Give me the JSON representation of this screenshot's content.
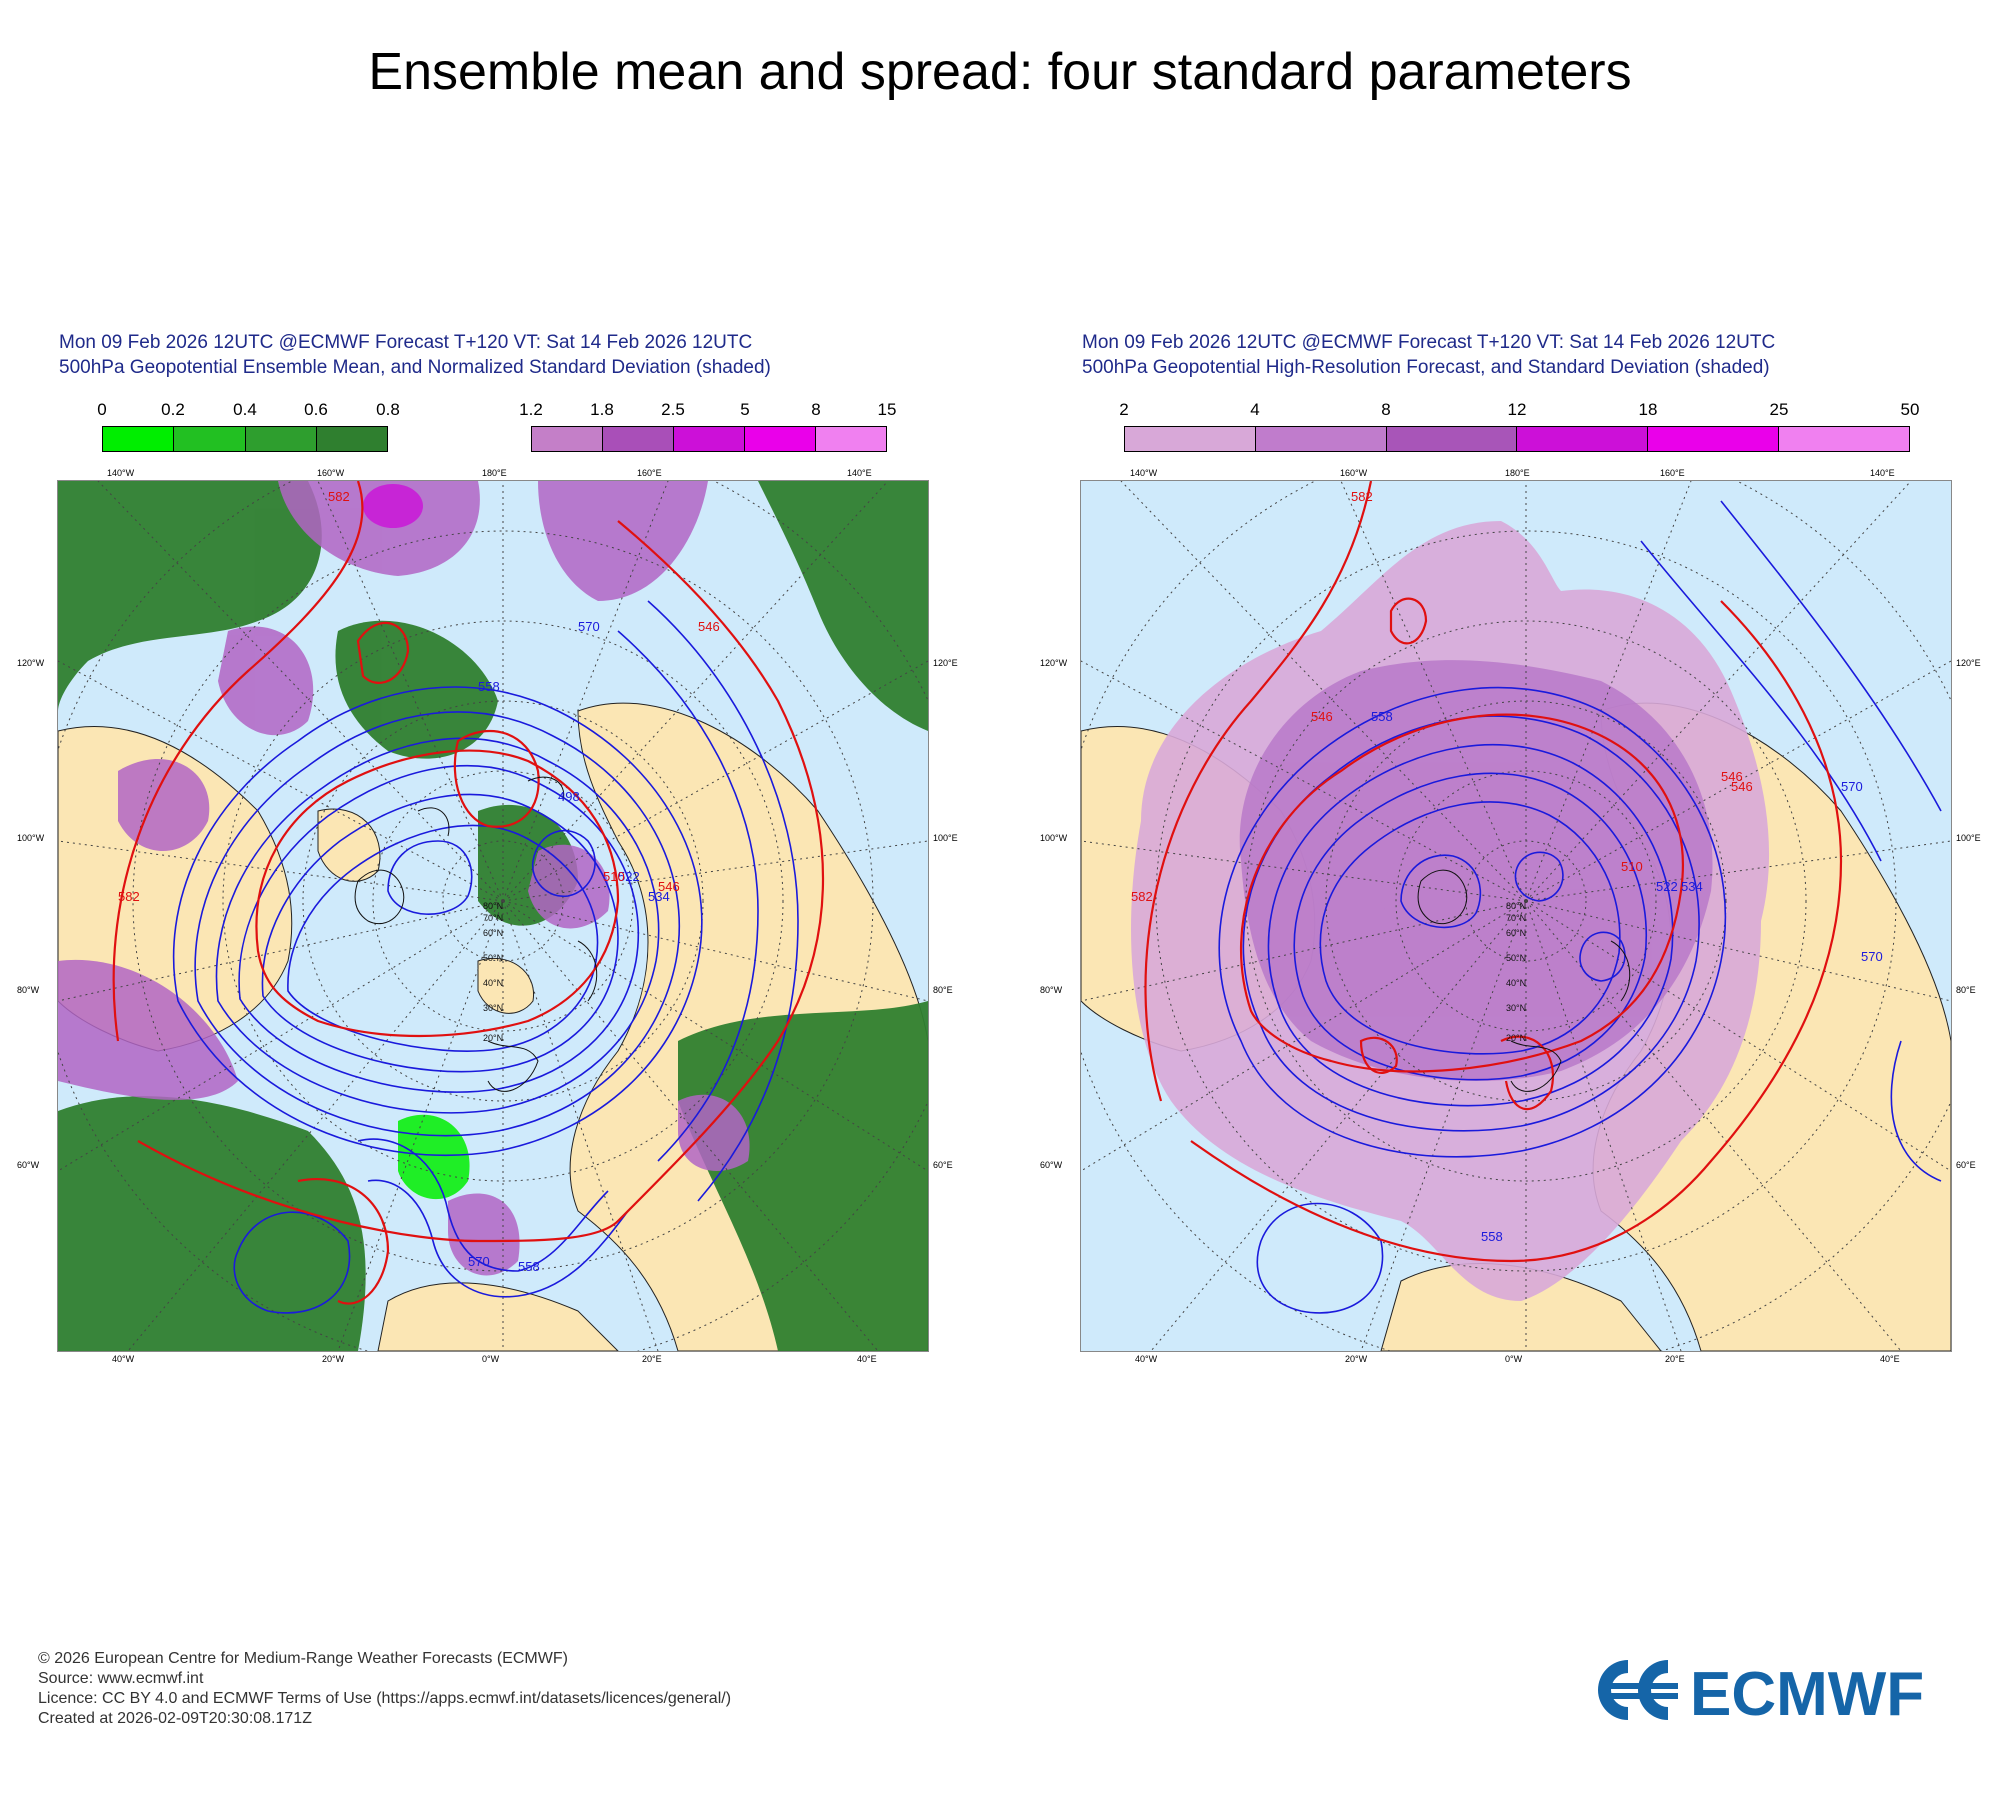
{
  "title": "Ensemble mean and spread: four standard parameters",
  "panels": [
    {
      "header_line1": "Mon 09 Feb 2026 12UTC @ECMWF Forecast T+120 VT: Sat 14 Feb 2026 12UTC",
      "header_line2": "500hPa Geopotential Ensemble Mean, and Normalized Standard Deviation (shaded)",
      "legend_green": {
        "ticks": [
          "0",
          "0.2",
          "0.4",
          "0.6",
          "0.8"
        ],
        "colors": [
          "#00ee00",
          "#22c022",
          "#2e9e2e",
          "#2f7f2f"
        ]
      },
      "legend_purple": {
        "ticks": [
          "1.2",
          "1.8",
          "2.5",
          "5",
          "8",
          "15"
        ],
        "colors": [
          "#c47fc8",
          "#a94fb8",
          "#cc10d8",
          "#ea00ea",
          "#f080f0"
        ]
      }
    },
    {
      "header_line1": "Mon 09 Feb 2026 12UTC @ECMWF Forecast T+120 VT: Sat 14 Feb 2026 12UTC",
      "header_line2": "500hPa Geopotential High-Resolution Forecast, and Standard Deviation (shaded)",
      "legend": {
        "ticks": [
          "2",
          "4",
          "8",
          "12",
          "18",
          "25",
          "50"
        ],
        "colors": [
          "#d8a8d8",
          "#c07ccc",
          "#a855b8",
          "#cc10d8",
          "#ea00ea",
          "#f080f0"
        ]
      }
    }
  ],
  "map_labels": {
    "top": [
      "140°W",
      "160°W",
      "180°E",
      "160°E",
      "140°E"
    ],
    "bottom": [
      "40°W",
      "20°W",
      "0°W",
      "20°E",
      "40°E"
    ],
    "left": [
      "120°W",
      "100°W",
      "80°W",
      "60°W"
    ],
    "right": [
      "120°E",
      "100°E",
      "80°E",
      "60°E"
    ],
    "lat": [
      "20°N",
      "30°N",
      "40°N",
      "50°N",
      "60°N",
      "70°N",
      "80°N"
    ]
  },
  "contour_labels": {
    "left": [
      "582",
      "570",
      "558",
      "546",
      "534",
      "522",
      "510",
      "498",
      "582",
      "570",
      "558",
      "546"
    ],
    "right": [
      "582",
      "570",
      "558",
      "546",
      "534",
      "522",
      "510",
      "546",
      "570",
      "558",
      "582",
      "546"
    ]
  },
  "footer": {
    "copyright": "© 2026 European Centre for Medium-Range Weather Forecasts (ECMWF)",
    "source": "Source: www.ecmwf.int",
    "licence": "Licence: CC BY 4.0 and ECMWF Terms of Use (https://apps.ecmwf.int/datasets/licences/general/)",
    "created": "Created at 2026-02-09T20:30:08.171Z"
  },
  "logo_text": "ECMWF",
  "colors": {
    "header_text": "#1f2a8a",
    "ocean": "#cfeafb",
    "land": "#fbe6b4",
    "contour_blue": "#1a1adc",
    "contour_red": "#e01010",
    "logo_blue": "#1565a8"
  }
}
